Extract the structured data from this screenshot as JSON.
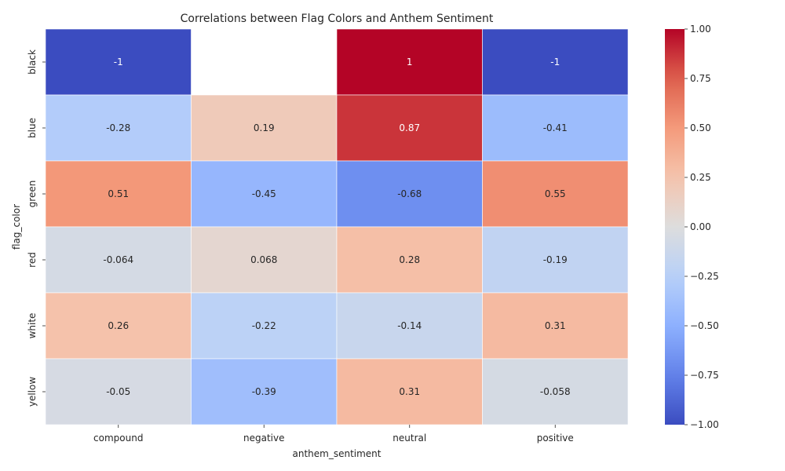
{
  "chart_data": {
    "type": "heatmap",
    "title": "Correlations between Flag Colors and Anthem Sentiment",
    "xlabel": "anthem_sentiment",
    "ylabel": "flag_color",
    "x_categories": [
      "compound",
      "negative",
      "neutral",
      "positive"
    ],
    "y_categories": [
      "black",
      "blue",
      "green",
      "red",
      "white",
      "yellow"
    ],
    "values": [
      [
        -1,
        null,
        1,
        -1
      ],
      [
        -0.28,
        0.19,
        0.87,
        -0.41
      ],
      [
        0.51,
        -0.45,
        -0.68,
        0.55
      ],
      [
        -0.064,
        0.068,
        0.28,
        -0.19
      ],
      [
        0.26,
        -0.22,
        -0.14,
        0.31
      ],
      [
        -0.05,
        -0.39,
        0.31,
        -0.058
      ]
    ],
    "value_labels": [
      [
        "-1",
        "",
        "1",
        "-1"
      ],
      [
        "-0.28",
        "0.19",
        "0.87",
        "-0.41"
      ],
      [
        "0.51",
        "-0.45",
        "-0.68",
        "0.55"
      ],
      [
        "-0.064",
        "0.068",
        "0.28",
        "-0.19"
      ],
      [
        "0.26",
        "-0.22",
        "-0.14",
        "0.31"
      ],
      [
        "-0.05",
        "-0.39",
        "0.31",
        "-0.058"
      ]
    ],
    "colormap": "coolwarm",
    "vmin": -1,
    "vmax": 1,
    "colorbar": {
      "ticks": [
        -1.0,
        -0.75,
        -0.5,
        -0.25,
        0.0,
        0.25,
        0.5,
        0.75,
        1.0
      ],
      "tick_labels": [
        "−1.00",
        "−0.75",
        "−0.50",
        "−0.25",
        "0.00",
        "0.25",
        "0.50",
        "0.75",
        "1.00"
      ],
      "placement": "right"
    },
    "grid_lines_color": "#ffffff"
  }
}
